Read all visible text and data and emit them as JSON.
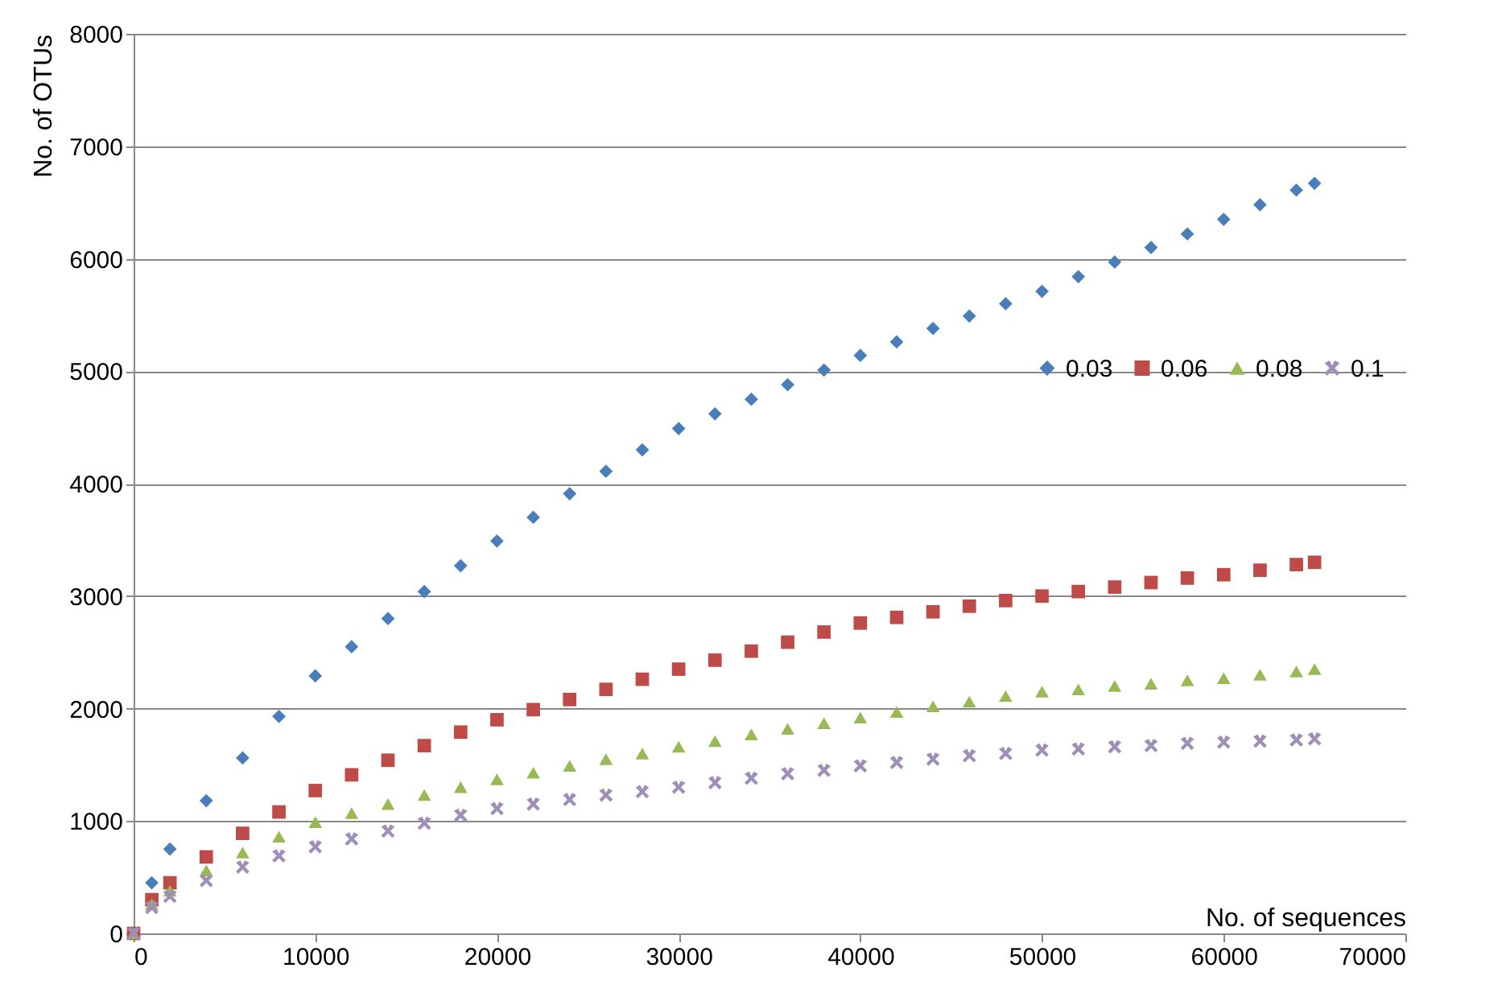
{
  "chart_data": {
    "type": "scatter",
    "xlabel": "No. of sequences",
    "ylabel": "No. of OTUs",
    "x": [
      0,
      1000,
      2000,
      4000,
      6000,
      8000,
      10000,
      12000,
      14000,
      16000,
      18000,
      20000,
      22000,
      24000,
      26000,
      28000,
      30000,
      32000,
      34000,
      36000,
      38000,
      40000,
      42000,
      44000,
      46000,
      48000,
      50000,
      52000,
      54000,
      56000,
      58000,
      60000,
      62000,
      64000,
      65000
    ],
    "series": [
      {
        "name": "0.03",
        "color": "#4a7ebb",
        "marker": "diamond",
        "values": [
          null,
          450,
          750,
          1180,
          1560,
          1930,
          2290,
          2550,
          2800,
          3040,
          3270,
          3490,
          3700,
          3910,
          4110,
          4300,
          4490,
          4620,
          4750,
          4880,
          5010,
          5140,
          5260,
          5380,
          5490,
          5600,
          5710,
          5840,
          5970,
          6100,
          6220,
          6350,
          6480,
          6610,
          6670
        ]
      },
      {
        "name": "0.06",
        "color": "#be4b48",
        "marker": "square",
        "values": [
          0,
          300,
          450,
          680,
          890,
          1080,
          1270,
          1410,
          1540,
          1670,
          1790,
          1900,
          1990,
          2080,
          2170,
          2260,
          2350,
          2430,
          2510,
          2590,
          2680,
          2760,
          2810,
          2860,
          2910,
          2960,
          3000,
          3040,
          3080,
          3120,
          3160,
          3190,
          3230,
          3280,
          3300
        ]
      },
      {
        "name": "0.08",
        "color": "#98b954",
        "marker": "triangle",
        "values": [
          0,
          260,
          380,
          560,
          720,
          860,
          990,
          1070,
          1150,
          1230,
          1300,
          1370,
          1430,
          1490,
          1550,
          1600,
          1660,
          1710,
          1770,
          1820,
          1870,
          1920,
          1970,
          2020,
          2060,
          2110,
          2150,
          2170,
          2200,
          2220,
          2250,
          2270,
          2300,
          2330,
          2350
        ]
      },
      {
        "name": "0.1",
        "color": "#9f8fb8",
        "marker": "cross",
        "values": [
          0,
          230,
          330,
          470,
          590,
          690,
          770,
          840,
          910,
          980,
          1050,
          1110,
          1150,
          1190,
          1230,
          1260,
          1300,
          1340,
          1380,
          1420,
          1450,
          1490,
          1520,
          1550,
          1580,
          1600,
          1630,
          1640,
          1660,
          1670,
          1690,
          1700,
          1710,
          1720,
          1730
        ]
      }
    ],
    "xlim": [
      0,
      70000
    ],
    "xticks": [
      0,
      10000,
      20000,
      30000,
      40000,
      50000,
      60000,
      70000
    ],
    "ylim": [
      0,
      8000
    ],
    "yticks": [
      0,
      1000,
      2000,
      3000,
      4000,
      5000,
      6000,
      7000,
      8000
    ],
    "grid": "y",
    "legend": "right"
  }
}
